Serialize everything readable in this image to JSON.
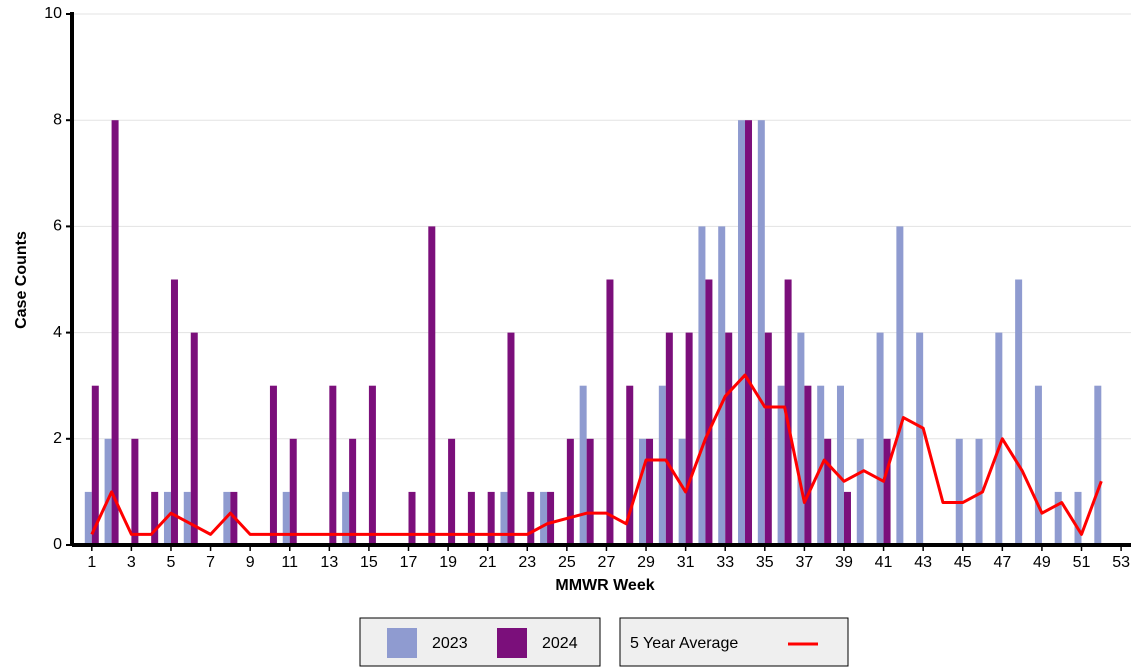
{
  "chart_data": {
    "type": "bar",
    "x_label": "MMWR Week",
    "y_label": "Case Counts",
    "x": [
      1,
      2,
      3,
      4,
      5,
      6,
      7,
      8,
      9,
      10,
      11,
      12,
      13,
      14,
      15,
      16,
      17,
      18,
      19,
      20,
      21,
      22,
      23,
      24,
      25,
      26,
      27,
      28,
      29,
      30,
      31,
      32,
      33,
      34,
      35,
      36,
      37,
      38,
      39,
      40,
      41,
      42,
      43,
      44,
      45,
      46,
      47,
      48,
      49,
      50,
      51,
      52,
      53
    ],
    "series": [
      {
        "name": "2023",
        "type": "bar",
        "color": "#8f9bd0",
        "values": [
          1,
          2,
          0,
          0,
          1,
          1,
          0,
          1,
          0,
          0,
          1,
          0,
          0,
          1,
          0,
          0,
          0,
          0,
          0,
          0,
          0,
          1,
          0,
          1,
          0,
          3,
          0,
          0,
          2,
          3,
          2,
          6,
          6,
          8,
          8,
          3,
          4,
          3,
          3,
          2,
          4,
          6,
          4,
          0,
          2,
          2,
          4,
          5,
          3,
          1,
          1,
          3,
          0
        ]
      },
      {
        "name": "2024",
        "type": "bar",
        "color": "#7b0f7b",
        "values": [
          3,
          8,
          2,
          1,
          5,
          4,
          0,
          1,
          0,
          3,
          2,
          0,
          3,
          2,
          3,
          0,
          1,
          6,
          2,
          1,
          1,
          4,
          1,
          1,
          2,
          2,
          5,
          3,
          2,
          4,
          4,
          5,
          4,
          8,
          4,
          5,
          3,
          2,
          1,
          0,
          2,
          0,
          0,
          0,
          0,
          0,
          0,
          0,
          0,
          0,
          0,
          0,
          0
        ]
      },
      {
        "name": "5 Year Average",
        "type": "line",
        "color": "#ff0000",
        "values": [
          0.2,
          1.0,
          0.2,
          0.2,
          0.6,
          0.4,
          0.2,
          0.6,
          0.2,
          0.2,
          0.2,
          0.2,
          0.2,
          0.2,
          0.2,
          0.2,
          0.2,
          0.2,
          0.2,
          0.2,
          0.2,
          0.2,
          0.2,
          0.4,
          0.5,
          0.6,
          0.6,
          0.4,
          1.6,
          1.6,
          1.0,
          2.0,
          2.8,
          3.2,
          2.6,
          2.6,
          0.8,
          1.6,
          1.2,
          1.4,
          1.2,
          2.4,
          2.2,
          0.8,
          0.8,
          1.0,
          2.0,
          1.4,
          0.6,
          0.8,
          0.2,
          1.2,
          null
        ]
      }
    ],
    "xlim": [
      0,
      53.5
    ],
    "xticks": [
      1,
      3,
      5,
      7,
      9,
      11,
      13,
      15,
      17,
      19,
      21,
      23,
      25,
      27,
      29,
      31,
      33,
      35,
      37,
      39,
      41,
      43,
      45,
      47,
      49,
      51,
      53
    ],
    "ylim": [
      0,
      10
    ],
    "yticks": [
      0,
      2,
      4,
      6,
      8,
      10
    ],
    "grid": true
  }
}
